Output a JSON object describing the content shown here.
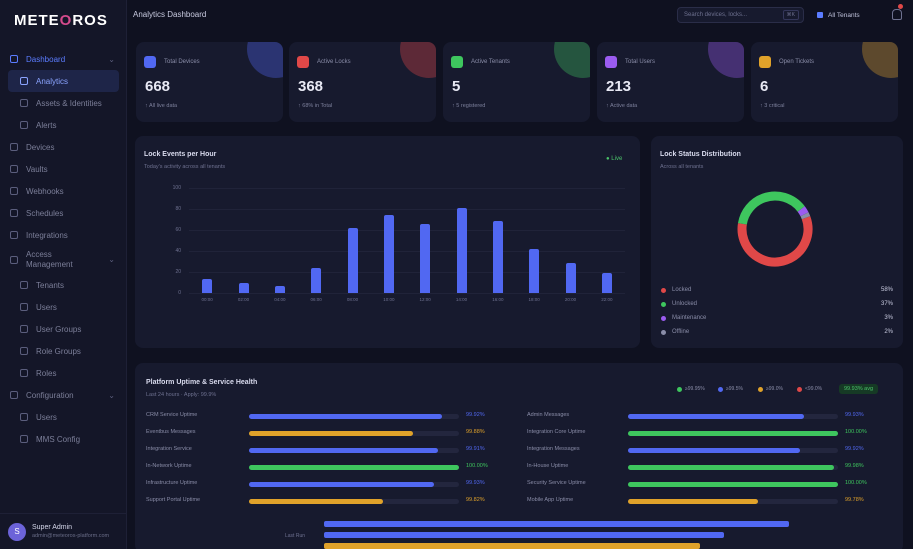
{
  "app": {
    "brand_left": "METE",
    "brand_drop": "O",
    "brand_right": "ROS"
  },
  "topbar": {
    "title": "Analytics Dashboard",
    "search_placeholder": "Search devices, locks...",
    "search_kbd": "⌘K",
    "tenant": "All Tenants"
  },
  "sidebar": {
    "items": [
      {
        "label": "Dashboard",
        "kind": "parent-active",
        "chev": "⌄"
      },
      {
        "label": "Analytics",
        "kind": "active"
      },
      {
        "label": "Assets & Identities",
        "kind": "sub"
      },
      {
        "label": "Alerts",
        "kind": "sub"
      },
      {
        "label": "Devices",
        "kind": "item"
      },
      {
        "label": "Vaults",
        "kind": "item"
      },
      {
        "label": "Webhooks",
        "kind": "item"
      },
      {
        "label": "Schedules",
        "kind": "item"
      },
      {
        "label": "Integrations",
        "kind": "item"
      },
      {
        "label": "Access Management",
        "kind": "two",
        "chev": "⌄"
      },
      {
        "label": "Tenants",
        "kind": "sub"
      },
      {
        "label": "Users",
        "kind": "sub"
      },
      {
        "label": "User Groups",
        "kind": "sub"
      },
      {
        "label": "Role Groups",
        "kind": "sub"
      },
      {
        "label": "Roles",
        "kind": "sub"
      },
      {
        "label": "Configuration",
        "kind": "item",
        "chev": "⌄"
      },
      {
        "label": "Users",
        "kind": "sub"
      },
      {
        "label": "MMS Config",
        "kind": "sub"
      }
    ],
    "user": {
      "initials": "S",
      "name": "Super Admin",
      "email": "admin@meteoros-platform.com"
    }
  },
  "colors": {
    "blue": "#5168f2",
    "red": "#e04848",
    "green": "#3ec65e",
    "purple": "#9b5cf0",
    "orange": "#e0a22a"
  },
  "stats": [
    {
      "label": "Total Devices",
      "value": "668",
      "sub": "↑ All live data",
      "color": "#5168f2",
      "icon": "device-icon"
    },
    {
      "label": "Active Locks",
      "value": "368",
      "sub": "↑ 68% in Total",
      "color": "#e04848",
      "icon": "lock-icon"
    },
    {
      "label": "Active Tenants",
      "value": "5",
      "sub": "↑ 5 registered",
      "color": "#3ec65e",
      "icon": "tenant-icon"
    },
    {
      "label": "Total Users",
      "value": "213",
      "sub": "↑ Active data",
      "color": "#9b5cf0",
      "icon": "users-icon"
    },
    {
      "label": "Open Tickets",
      "value": "6",
      "sub": "↑ 3 critical",
      "color": "#e0a22a",
      "icon": "ticket-icon"
    }
  ],
  "lock_events": {
    "title": "Lock Events per Hour",
    "subtitle": "Today's activity across all tenants",
    "live_label": "● Live"
  },
  "chart_data": {
    "type": "bar",
    "categories": [
      "00:00",
      "02:00",
      "04:00",
      "06:00",
      "08:00",
      "10:00",
      "12:00",
      "14:00",
      "16:00",
      "18:00",
      "20:00",
      "22:00"
    ],
    "values": [
      13,
      10,
      7,
      24,
      62,
      74,
      66,
      81,
      69,
      42,
      29,
      19
    ],
    "ylim": [
      0,
      100
    ],
    "yticks": [
      "100",
      "80",
      "60",
      "40",
      "20",
      "0"
    ],
    "grid": true
  },
  "lock_status": {
    "title": "Lock Status Distribution",
    "subtitle": "Across all tenants",
    "items": [
      {
        "label": "Locked",
        "value": "58%",
        "pct": 58,
        "color": "#e04848"
      },
      {
        "label": "Unlocked",
        "value": "37%",
        "pct": 37,
        "color": "#3ec65e"
      },
      {
        "label": "Maintenance",
        "value": "3%",
        "pct": 3,
        "color": "#9b5cf0"
      },
      {
        "label": "Offline",
        "value": "2%",
        "pct": 2,
        "color": "#8a8da8"
      }
    ]
  },
  "uptime": {
    "title": "Platform Uptime & Service Health",
    "subtitle": "Last 24 hours · Apply: 99.9%",
    "legend": [
      {
        "label": "≥99.95%",
        "color": "#3ec65e"
      },
      {
        "label": "≥99.5%",
        "color": "#5168f2"
      },
      {
        "label": "≥99.0%",
        "color": "#e0a22a"
      },
      {
        "label": "<99.0%",
        "color": "#e04848"
      }
    ],
    "pill": "99.93% avg",
    "left": [
      {
        "name": "CRM Service Uptime",
        "pct": "99.92%",
        "fill": 0.92,
        "color": "#5168f2"
      },
      {
        "name": "Eventbus Messages",
        "pct": "99.88%",
        "fill": 0.78,
        "color": "#e0a22a"
      },
      {
        "name": "Integration Service",
        "pct": "99.91%",
        "fill": 0.9,
        "color": "#5168f2"
      },
      {
        "name": "In-Network Uptime",
        "pct": "100.00%",
        "fill": 1.0,
        "color": "#3ec65e"
      },
      {
        "name": "Infrastructure Uptime",
        "pct": "99.93%",
        "fill": 0.88,
        "color": "#5168f2"
      },
      {
        "name": "Support Portal Uptime",
        "pct": "99.82%",
        "fill": 0.64,
        "color": "#e0a22a"
      }
    ],
    "right": [
      {
        "name": "Admin Messages",
        "pct": "99.93%",
        "fill": 0.84,
        "color": "#5168f2"
      },
      {
        "name": "Integration Core Uptime",
        "pct": "100.00%",
        "fill": 1.0,
        "color": "#3ec65e"
      },
      {
        "name": "Integration Messages",
        "pct": "99.92%",
        "fill": 0.82,
        "color": "#5168f2"
      },
      {
        "name": "In-House Uptime",
        "pct": "99.98%",
        "fill": 0.98,
        "color": "#3ec65e"
      },
      {
        "name": "Security Service Uptime",
        "pct": "100.00%",
        "fill": 1.0,
        "color": "#3ec65e"
      },
      {
        "name": "Mobile App Uptime",
        "pct": "99.78%",
        "fill": 0.62,
        "color": "#e0a22a"
      }
    ],
    "bottom_label": "Last Run",
    "bottom_bars": [
      {
        "fill": 0.99,
        "color": "#5168f2"
      },
      {
        "fill": 0.85,
        "color": "#5168f2"
      },
      {
        "fill": 0.8,
        "color": "#e0a22a"
      }
    ]
  }
}
